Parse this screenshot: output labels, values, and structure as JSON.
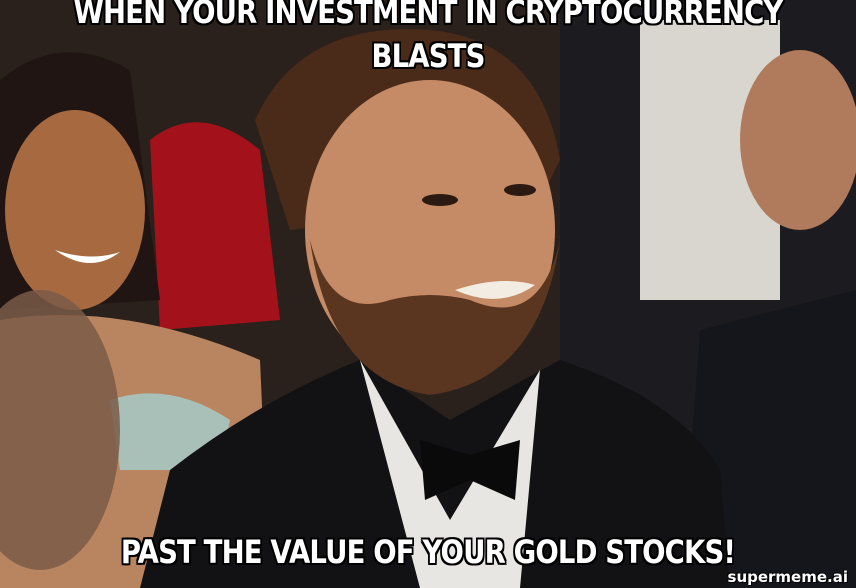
{
  "meme": {
    "top_text": "WHEN YOUR INVESTMENT IN CRYPTOCURRENCY BLASTS",
    "bottom_text": "PAST THE VALUE OF YOUR GOLD STOCKS!",
    "watermark": "supermeme.ai"
  }
}
